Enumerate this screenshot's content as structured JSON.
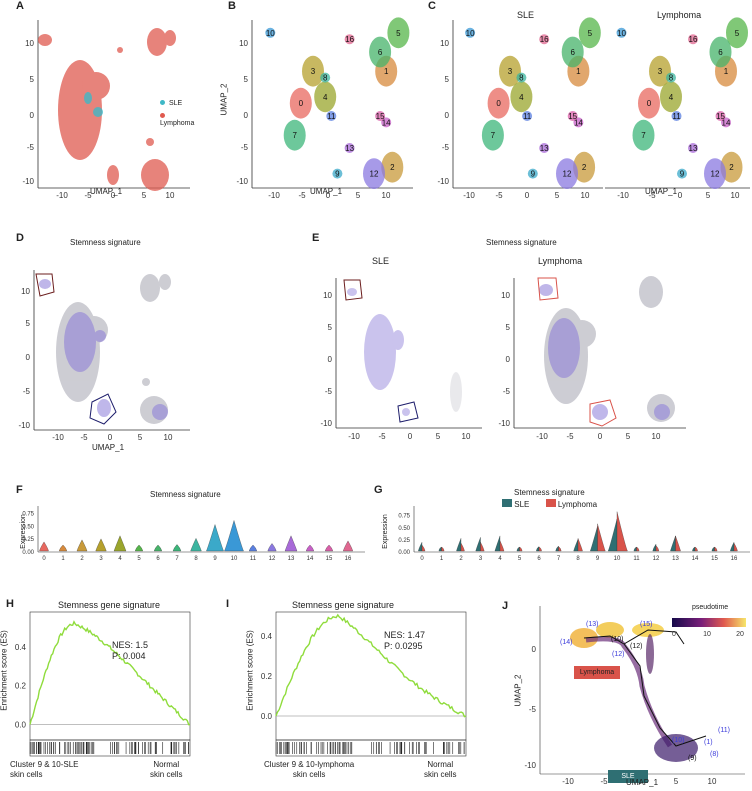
{
  "panels": {
    "A": {
      "label": "A",
      "xlabel": "UMAP_1",
      "legend": [
        {
          "name": "SLE",
          "color": "#3fb8c7"
        },
        {
          "name": "Lymphoma",
          "color": "#e05a4f"
        }
      ]
    },
    "B": {
      "label": "B",
      "xlabel": "UMAP_1",
      "ylabel": "UMAP_2"
    },
    "C": {
      "label": "C",
      "xlabel": "UMAP_1",
      "left_title": "SLE",
      "right_title": "Lymphoma"
    },
    "D": {
      "label": "D",
      "title": "Stemness signature",
      "xlabel": "UMAP_1"
    },
    "E": {
      "label": "E",
      "title": "Stemness signature",
      "left_title": "SLE",
      "right_title": "Lymphoma"
    },
    "F": {
      "label": "F",
      "title": "Stemness signature",
      "ylabel": "Expression"
    },
    "G": {
      "label": "G",
      "title": "Stemness signature",
      "legend": [
        "SLE",
        "Lymphoma"
      ],
      "ylabel": "Expression"
    },
    "H": {
      "label": "H",
      "title": "Stemness gene signature",
      "ylabel": "Enrichment score (ES)",
      "nes": "NES: 1.5",
      "p": "P: 0.004",
      "left_label_1": "Cluster 9 & 10-SLE",
      "left_label_2": "skin cells",
      "right_label_1": "Normal",
      "right_label_2": "skin cells"
    },
    "I": {
      "label": "I",
      "title": "Stemness gene signature",
      "ylabel": "Enrichment score (ES)",
      "nes": "NES: 1.47",
      "p": "P: 0.0295",
      "left_label_1": "Cluster 9 & 10-lymphoma",
      "left_label_2": "skin cells",
      "right_label_1": "Normal",
      "right_label_2": "skin cells"
    },
    "J": {
      "label": "J",
      "xlabel": "UMAP_1",
      "ylabel": "UMAP_2",
      "legend_title": "pseudotime",
      "lymphoma_label": "Lymphoma",
      "sle_label": "SLE"
    }
  },
  "chart_data": [
    {
      "type": "scatter",
      "panel": "A",
      "x_ticks": [
        -10,
        -5,
        0,
        5,
        10
      ],
      "y_ticks": [
        10,
        5,
        0,
        -5,
        -10
      ],
      "xlim": [
        -14,
        12
      ],
      "ylim": [
        -12,
        14
      ],
      "series": [
        "SLE",
        "Lymphoma"
      ]
    },
    {
      "type": "scatter",
      "panel": "B",
      "x_ticks": [
        -10,
        -5,
        0,
        5,
        10
      ],
      "y_ticks": [
        10,
        5,
        0,
        -5,
        -10
      ],
      "xlim": [
        -14,
        12
      ],
      "ylim": [
        -12,
        14
      ],
      "clusters": [
        {
          "id": "0",
          "x": -6,
          "y": 1,
          "color": "#e8685f"
        },
        {
          "id": "1",
          "x": 8,
          "y": 6,
          "color": "#d78a3c"
        },
        {
          "id": "2",
          "x": 9,
          "y": -9,
          "color": "#c89a3a"
        },
        {
          "id": "3",
          "x": -4,
          "y": 6,
          "color": "#b5a02c"
        },
        {
          "id": "4",
          "x": -2,
          "y": 2,
          "color": "#9aa52c"
        },
        {
          "id": "5",
          "x": 10,
          "y": 12,
          "color": "#55b54a"
        },
        {
          "id": "6",
          "x": 7,
          "y": 9,
          "color": "#46b36a"
        },
        {
          "id": "7",
          "x": -7,
          "y": -4,
          "color": "#3cb57a"
        },
        {
          "id": "8",
          "x": -2,
          "y": 5,
          "color": "#3cb5a0"
        },
        {
          "id": "9",
          "x": 0,
          "y": -10,
          "color": "#3ba9c9"
        },
        {
          "id": "10",
          "x": -11,
          "y": 12,
          "color": "#3a98d6"
        },
        {
          "id": "11",
          "x": -1,
          "y": -1,
          "color": "#5a7fe0"
        },
        {
          "id": "12",
          "x": 6,
          "y": -10,
          "color": "#8a78e0"
        },
        {
          "id": "13",
          "x": 2,
          "y": -6,
          "color": "#a86ad8"
        },
        {
          "id": "14",
          "x": 8,
          "y": -2,
          "color": "#c860c8"
        },
        {
          "id": "15",
          "x": 7,
          "y": -1,
          "color": "#d95fa8"
        },
        {
          "id": "16",
          "x": 2,
          "y": 11,
          "color": "#e06790"
        }
      ]
    },
    {
      "type": "scatter",
      "panel": "C",
      "x_ticks": [
        -10,
        -5,
        0,
        5,
        10
      ],
      "y_ticks": [
        10,
        5,
        0,
        -5,
        -10
      ],
      "facets": [
        "SLE",
        "Lymphoma"
      ]
    },
    {
      "type": "scatter",
      "panel": "D",
      "x_ticks": [
        -10,
        -5,
        0,
        5,
        10
      ],
      "y_ticks": [
        10,
        5,
        0,
        -5,
        -10
      ],
      "feature": "Stemness signature"
    },
    {
      "type": "scatter",
      "panel": "E",
      "x_ticks": [
        -10,
        -5,
        0,
        5,
        10
      ],
      "y_ticks": [
        10,
        5,
        0,
        -5,
        -10
      ],
      "facets": [
        "SLE",
        "Lymphoma"
      ]
    },
    {
      "type": "violin",
      "panel": "F",
      "categories": [
        "0",
        "1",
        "2",
        "3",
        "4",
        "5",
        "6",
        "7",
        "8",
        "9",
        "10",
        "11",
        "12",
        "13",
        "14",
        "15",
        "16"
      ],
      "values": [
        0.08,
        0.02,
        0.12,
        0.14,
        0.2,
        0.02,
        0.02,
        0.03,
        0.15,
        0.42,
        0.5,
        0.02,
        0.05,
        0.2,
        0.02,
        0.02,
        0.1
      ],
      "y_ticks": [
        0.0,
        0.25,
        0.5,
        0.75
      ],
      "ylim": [
        0,
        0.9
      ]
    },
    {
      "type": "violin",
      "panel": "G",
      "categories": [
        "0",
        "1",
        "2",
        "3",
        "4",
        "5",
        "6",
        "7",
        "8",
        "9",
        "10",
        "11",
        "12",
        "13",
        "14",
        "15",
        "16"
      ],
      "series": [
        {
          "name": "SLE",
          "color": "#2f6f73",
          "values": [
            0.12,
            0.02,
            0.2,
            0.22,
            0.25,
            0.02,
            0.03,
            0.04,
            0.18,
            0.45,
            0.6,
            0.02,
            0.08,
            0.25,
            0.02,
            0.02,
            0.12
          ]
        },
        {
          "name": "Lymphoma",
          "color": "#d9534a",
          "values": [
            0.06,
            0.02,
            0.1,
            0.12,
            0.15,
            0.02,
            0.02,
            0.03,
            0.2,
            0.5,
            0.75,
            0.02,
            0.05,
            0.25,
            0.02,
            0.02,
            0.1
          ]
        }
      ],
      "y_ticks": [
        0.0,
        0.25,
        0.5,
        0.75
      ],
      "ylim": [
        0,
        0.95
      ]
    },
    {
      "type": "line",
      "panel": "H",
      "y_ticks": [
        0.0,
        0.2,
        0.4
      ],
      "ylim": [
        -0.08,
        0.58
      ],
      "peak": 0.52
    },
    {
      "type": "line",
      "panel": "I",
      "y_ticks": [
        0.0,
        0.2,
        0.4
      ],
      "ylim": [
        -0.12,
        0.52
      ],
      "peak": 0.5
    },
    {
      "type": "scatter",
      "panel": "J",
      "x_ticks": [
        -10,
        -5,
        0,
        5,
        10
      ],
      "y_ticks": [
        0,
        -5,
        -10
      ],
      "pseudotime_ticks": [
        0,
        10,
        20
      ],
      "node_labels": [
        "(14)",
        "(13)",
        "(15)",
        "(10)",
        "(12)",
        "(12)",
        "(11)",
        "(10)",
        "(1)",
        "(9)",
        "(8)"
      ]
    }
  ]
}
